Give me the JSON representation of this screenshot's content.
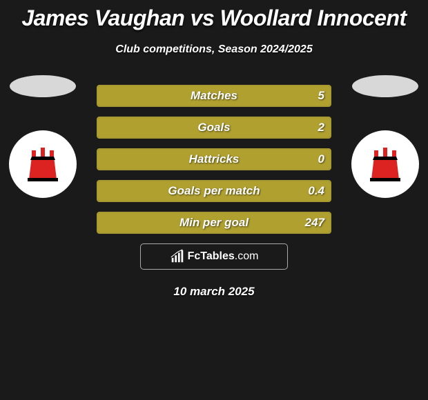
{
  "title": "James Vaughan vs Woollard Innocent",
  "subtitle": "Club competitions, Season 2024/2025",
  "date": "10 march 2025",
  "watermark": "FcTables.com",
  "colors": {
    "barBorder": "#a89a2e",
    "barFill": "#b0a030",
    "leftEllipse": "#d8d8d8",
    "rightEllipse": "#d8d8d8",
    "badgeBg": "#ffffff"
  },
  "stats": [
    {
      "label": "Matches",
      "leftVal": "",
      "rightVal": "5",
      "leftPct": 0,
      "rightPct": 100
    },
    {
      "label": "Goals",
      "leftVal": "",
      "rightVal": "2",
      "leftPct": 0,
      "rightPct": 100
    },
    {
      "label": "Hattricks",
      "leftVal": "",
      "rightVal": "0",
      "leftPct": 0,
      "rightPct": 100
    },
    {
      "label": "Goals per match",
      "leftVal": "",
      "rightVal": "0.4",
      "leftPct": 0,
      "rightPct": 100
    },
    {
      "label": "Min per goal",
      "leftVal": "",
      "rightVal": "247",
      "leftPct": 0,
      "rightPct": 100
    }
  ]
}
